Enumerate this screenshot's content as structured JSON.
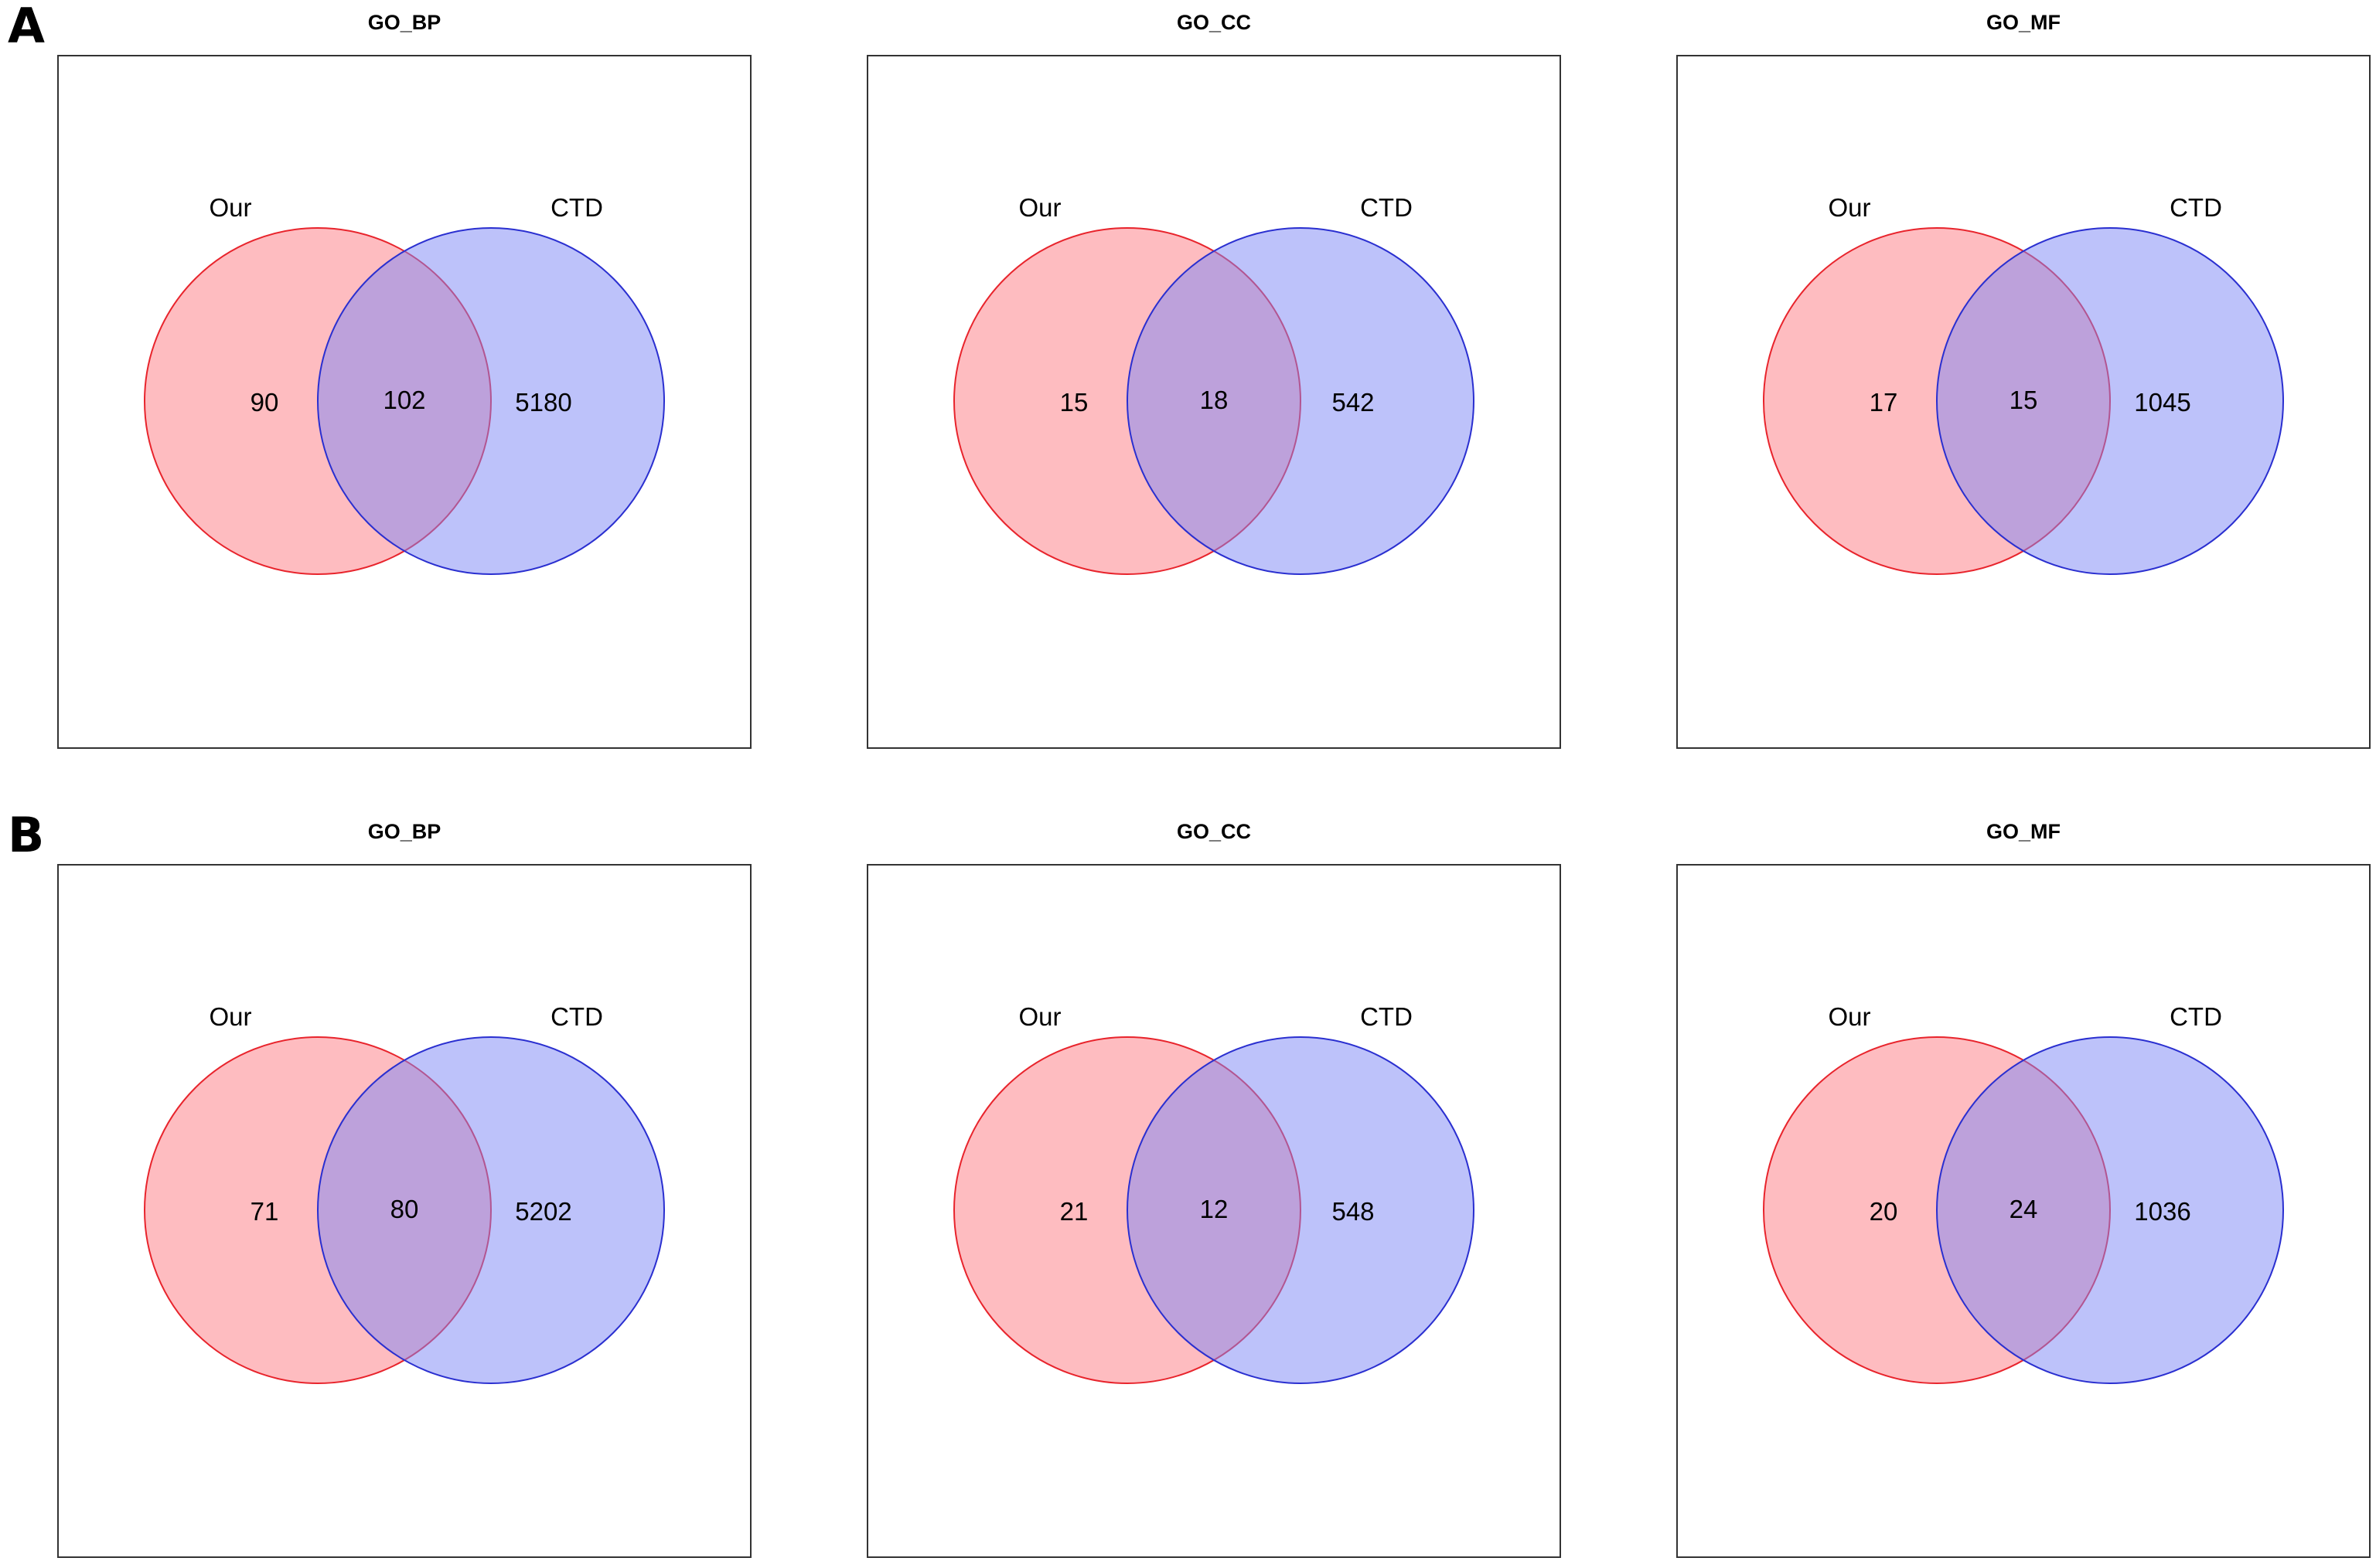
{
  "chart_data": {
    "type": "venn",
    "panels": [
      {
        "letter": "A",
        "diagrams": [
          {
            "title": "GO_BP",
            "sets": [
              "Our",
              "CTD"
            ],
            "only_a": "90",
            "both": "102",
            "only_b": "5180"
          },
          {
            "title": "GO_CC",
            "sets": [
              "Our",
              "CTD"
            ],
            "only_a": "15",
            "both": "18",
            "only_b": "542"
          },
          {
            "title": "GO_MF",
            "sets": [
              "Our",
              "CTD"
            ],
            "only_a": "17",
            "both": "15",
            "only_b": "1045"
          }
        ]
      },
      {
        "letter": "B",
        "diagrams": [
          {
            "title": "GO_BP",
            "sets": [
              "Our",
              "CTD"
            ],
            "only_a": "71",
            "both": "80",
            "only_b": "5202"
          },
          {
            "title": "GO_CC",
            "sets": [
              "Our",
              "CTD"
            ],
            "only_a": "21",
            "both": "12",
            "only_b": "548"
          },
          {
            "title": "GO_MF",
            "sets": [
              "Our",
              "CTD"
            ],
            "only_a": "20",
            "both": "24",
            "only_b": "1036"
          }
        ]
      }
    ],
    "colors": {
      "set_a_fill": "#fc6b73",
      "set_a_stroke": "#e8242c",
      "set_b_fill": "#7b86f6",
      "set_b_stroke": "#2a2fd0"
    }
  }
}
